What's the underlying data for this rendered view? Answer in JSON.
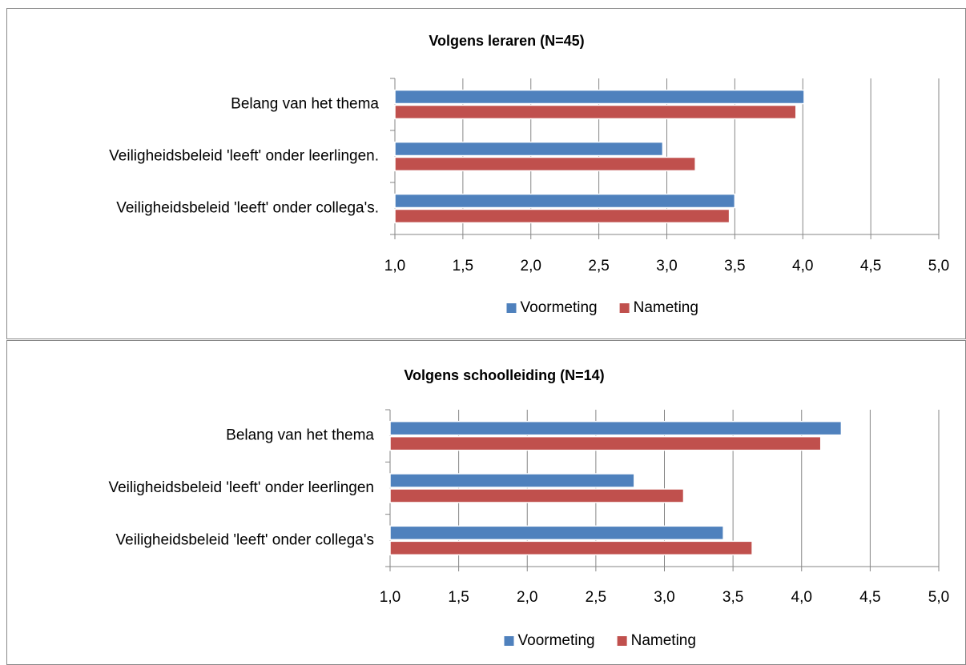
{
  "chart_data": [
    {
      "type": "bar",
      "orientation": "horizontal",
      "title": "Volgens leraren (N=45)",
      "categories": [
        "Belang van het thema",
        "Veiligheidsbeleid 'leeft' onder leerlingen.",
        "Veiligheidsbeleid 'leeft' onder collega's."
      ],
      "series": [
        {
          "name": "Voormeting",
          "color": "#4f81bd",
          "values": [
            4.01,
            2.97,
            3.5
          ]
        },
        {
          "name": "Nameting",
          "color": "#c0504d",
          "values": [
            3.95,
            3.21,
            3.46
          ]
        }
      ],
      "xlim": [
        1,
        5
      ],
      "xticks": [
        {
          "value": 1,
          "label": "1,0"
        },
        {
          "value": 1.5,
          "label": "1,5"
        },
        {
          "value": 2,
          "label": "2,0"
        },
        {
          "value": 2.5,
          "label": "2,5"
        },
        {
          "value": 3,
          "label": "3,0"
        },
        {
          "value": 3.5,
          "label": "3,5"
        },
        {
          "value": 4,
          "label": "4,0"
        },
        {
          "value": 4.5,
          "label": "4,5"
        },
        {
          "value": 5,
          "label": "5,0"
        }
      ],
      "grid": true,
      "legend": "bottom"
    },
    {
      "type": "bar",
      "orientation": "horizontal",
      "title": "Volgens schoolleiding (N=14)",
      "categories": [
        "Belang van het thema",
        "Veiligheidsbeleid 'leeft' onder leerlingen",
        "Veiligheidsbeleid 'leeft' onder collega's"
      ],
      "series": [
        {
          "name": "Voormeting",
          "color": "#4f81bd",
          "values": [
            4.29,
            2.78,
            3.43
          ]
        },
        {
          "name": "Nameting",
          "color": "#c0504d",
          "values": [
            4.14,
            3.14,
            3.64
          ]
        }
      ],
      "xlim": [
        1,
        5
      ],
      "xticks": [
        {
          "value": 1,
          "label": "1,0"
        },
        {
          "value": 1.5,
          "label": "1,5"
        },
        {
          "value": 2,
          "label": "2,0"
        },
        {
          "value": 2.5,
          "label": "2,5"
        },
        {
          "value": 3,
          "label": "3,0"
        },
        {
          "value": 3.5,
          "label": "3,5"
        },
        {
          "value": 4,
          "label": "4,0"
        },
        {
          "value": 4.5,
          "label": "4,5"
        },
        {
          "value": 5,
          "label": "5,0"
        }
      ],
      "grid": true,
      "legend": "bottom"
    }
  ]
}
